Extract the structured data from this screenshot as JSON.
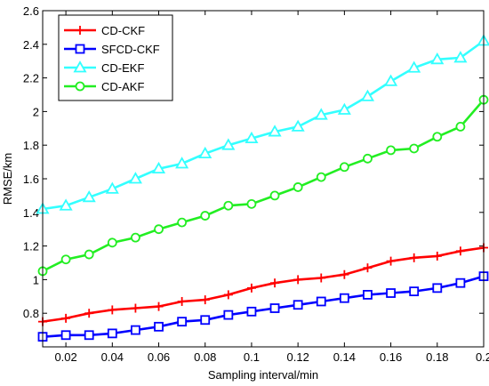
{
  "chart_data": {
    "type": "line",
    "xlabel": "Sampling interval/min",
    "ylabel": "RMSE/km",
    "xlim": [
      0.01,
      0.2
    ],
    "ylim": [
      0.6,
      2.6
    ],
    "xticks": [
      0.02,
      0.04,
      0.06,
      0.08,
      0.1,
      0.12,
      0.14,
      0.16,
      0.18,
      0.2
    ],
    "xtick_labels": [
      "0.02",
      "0.04",
      "0.06",
      "0.08",
      "0.1",
      "0.12",
      "0.14",
      "0.16",
      "0.18",
      "0.2"
    ],
    "yticks": [
      0.8,
      1,
      1.2,
      1.4,
      1.6,
      1.8,
      2,
      2.2,
      2.4,
      2.6
    ],
    "ytick_labels": [
      "0.8",
      "1",
      "1.2",
      "1.4",
      "1.6",
      "1.8",
      "2",
      "2.2",
      "2.4",
      "2.6"
    ],
    "grid": false,
    "legend_position": "top-left",
    "x": [
      0.01,
      0.02,
      0.03,
      0.04,
      0.05,
      0.06,
      0.07,
      0.08,
      0.09,
      0.1,
      0.11,
      0.12,
      0.13,
      0.14,
      0.15,
      0.16,
      0.17,
      0.18,
      0.19,
      0.2
    ],
    "series": [
      {
        "name": "CD-CKF",
        "color": "#ff0000",
        "marker": "plus",
        "values": [
          0.75,
          0.77,
          0.8,
          0.82,
          0.83,
          0.84,
          0.87,
          0.88,
          0.91,
          0.95,
          0.98,
          1.0,
          1.01,
          1.03,
          1.07,
          1.11,
          1.13,
          1.14,
          1.17,
          1.19
        ]
      },
      {
        "name": "SFCD-CKF",
        "color": "#0000ff",
        "marker": "square",
        "values": [
          0.66,
          0.67,
          0.67,
          0.68,
          0.7,
          0.72,
          0.75,
          0.76,
          0.79,
          0.81,
          0.83,
          0.85,
          0.87,
          0.89,
          0.91,
          0.92,
          0.93,
          0.95,
          0.98,
          1.02
        ]
      },
      {
        "name": "CD-EKF",
        "color": "#33ffff",
        "marker": "triangle",
        "values": [
          1.42,
          1.44,
          1.49,
          1.54,
          1.6,
          1.66,
          1.69,
          1.75,
          1.8,
          1.84,
          1.88,
          1.91,
          1.98,
          2.01,
          2.09,
          2.18,
          2.26,
          2.31,
          2.32,
          2.42
        ]
      },
      {
        "name": "CD-AKF",
        "color": "#22ee22",
        "marker": "circle",
        "values": [
          1.05,
          1.12,
          1.15,
          1.22,
          1.25,
          1.3,
          1.34,
          1.38,
          1.44,
          1.45,
          1.5,
          1.55,
          1.61,
          1.67,
          1.72,
          1.77,
          1.78,
          1.85,
          1.91,
          2.07
        ]
      }
    ]
  }
}
